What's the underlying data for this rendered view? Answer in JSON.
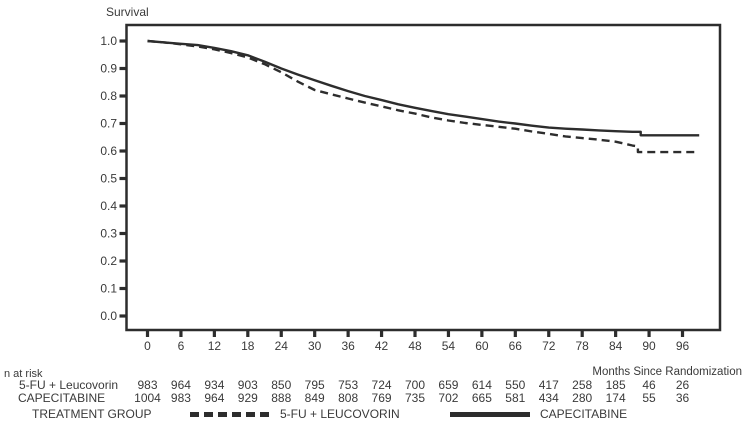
{
  "page": {
    "background": "#ffffff"
  },
  "colors": {
    "line": "#2d2d2d",
    "frame": "#2d2d2d",
    "text": "#3a3a3a"
  },
  "chart_data": {
    "type": "line",
    "variant": "kaplan-meier-survival",
    "title": "Survival",
    "ylabel": "Survival",
    "xlabel": "Months Since Randomization",
    "grid": false,
    "legend_position": "bottom",
    "xticks": [
      0,
      6,
      12,
      18,
      24,
      30,
      36,
      42,
      48,
      54,
      60,
      66,
      72,
      78,
      84,
      90,
      96
    ],
    "yticks": [
      0.0,
      0.1,
      0.2,
      0.3,
      0.4,
      0.5,
      0.6,
      0.7,
      0.8,
      0.9,
      1.0
    ],
    "xlim": [
      0,
      96
    ],
    "ylim": [
      0.0,
      1.0
    ],
    "series": [
      {
        "name": "CAPECITABINE",
        "line_style": "solid",
        "x": [
          0,
          3,
          6,
          9,
          12,
          15,
          18,
          21,
          24,
          27,
          30,
          33,
          36,
          39,
          42,
          45,
          48,
          51,
          54,
          57,
          60,
          63,
          66,
          69,
          72,
          75,
          78,
          81,
          84,
          87,
          88.5,
          88.5,
          99
        ],
        "y": [
          1.0,
          0.995,
          0.99,
          0.985,
          0.975,
          0.963,
          0.948,
          0.925,
          0.9,
          0.878,
          0.857,
          0.837,
          0.818,
          0.8,
          0.785,
          0.77,
          0.757,
          0.745,
          0.734,
          0.725,
          0.716,
          0.707,
          0.7,
          0.692,
          0.685,
          0.681,
          0.678,
          0.675,
          0.672,
          0.67,
          0.67,
          0.657,
          0.657
        ]
      },
      {
        "name": "5-FU + LEUCOVORIN",
        "line_style": "dashed",
        "x": [
          0,
          3,
          6,
          9,
          12,
          15,
          18,
          21,
          24,
          27,
          30,
          33,
          36,
          39,
          42,
          45,
          48,
          51,
          54,
          57,
          60,
          63,
          66,
          69,
          72,
          75,
          78,
          81,
          84,
          87,
          88,
          88,
          99
        ],
        "y": [
          1.0,
          0.995,
          0.988,
          0.98,
          0.97,
          0.956,
          0.94,
          0.916,
          0.886,
          0.852,
          0.822,
          0.806,
          0.791,
          0.776,
          0.762,
          0.748,
          0.736,
          0.722,
          0.711,
          0.702,
          0.695,
          0.688,
          0.681,
          0.671,
          0.662,
          0.653,
          0.647,
          0.641,
          0.634,
          0.62,
          0.617,
          0.596,
          0.596
        ]
      }
    ]
  },
  "risk_table": {
    "heading": "n at risk",
    "axis_note": "Months Since Randomization",
    "time_points": [
      0,
      6,
      12,
      18,
      24,
      30,
      36,
      42,
      48,
      54,
      60,
      66,
      72,
      78,
      84,
      90,
      96
    ],
    "rows": [
      {
        "label": "5-FU + Leucovorin",
        "counts": [
          983,
          964,
          934,
          903,
          850,
          795,
          753,
          724,
          700,
          659,
          614,
          550,
          417,
          258,
          185,
          46,
          26
        ]
      },
      {
        "label": "CAPECITABINE",
        "counts": [
          1004,
          983,
          964,
          929,
          888,
          849,
          808,
          769,
          735,
          702,
          665,
          581,
          434,
          280,
          174,
          55,
          36
        ]
      }
    ]
  },
  "legend": {
    "title": "TREATMENT GROUP",
    "items": [
      {
        "label": "5-FU + LEUCOVORIN",
        "line_style": "dashed"
      },
      {
        "label": "CAPECITABINE",
        "line_style": "solid"
      }
    ]
  }
}
